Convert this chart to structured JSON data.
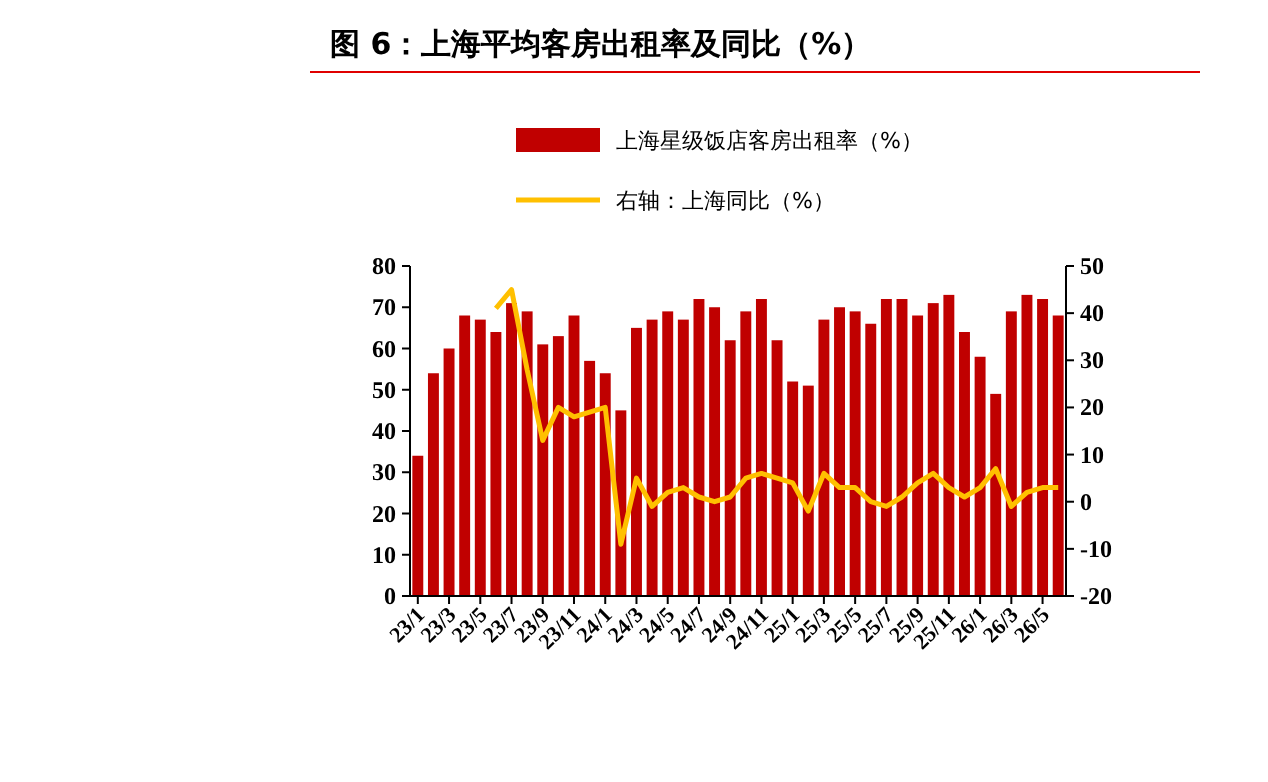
{
  "chart_data": {
    "type": "bar",
    "title": "图 6：上海平均客房出租率及同比（%）",
    "categories": [
      "23/1",
      null,
      "23/3",
      null,
      "23/5",
      null,
      "23/7",
      null,
      "23/9",
      null,
      "23/11",
      null,
      "24/1",
      null,
      "24/3",
      null,
      "24/5",
      null,
      "24/7",
      null,
      "24/9",
      null,
      "24/11",
      null,
      "25/1",
      null,
      "25/3",
      null,
      "25/5",
      null,
      "25/7",
      null,
      "25/9",
      null,
      "25/11",
      null,
      "26/1",
      null,
      "26/3",
      null,
      "26/5",
      null
    ],
    "series": [
      {
        "name": "上海星级饭店客房出租率（%）",
        "color": "#c00000",
        "values": [
          34,
          54,
          60,
          68,
          67,
          64,
          71,
          69,
          61,
          63,
          68,
          57,
          54,
          45,
          65,
          67,
          69,
          67,
          72,
          70,
          62,
          69,
          72,
          62,
          52,
          51,
          67,
          70,
          69,
          66,
          72,
          72,
          68,
          71,
          73,
          64,
          58,
          49,
          69,
          73,
          72,
          68
        ]
      },
      {
        "name": "右轴：上海同比（%）",
        "type": "line",
        "axis": "y2",
        "color": "#ffc000",
        "values": [
          null,
          null,
          null,
          null,
          null,
          41,
          45,
          28,
          13,
          20,
          18,
          19,
          20,
          -9,
          5,
          -1,
          2,
          3,
          1,
          0,
          1,
          5,
          6,
          5,
          4,
          -2,
          6,
          3,
          3,
          0,
          -1,
          1,
          4,
          6,
          3,
          1,
          3,
          7,
          -1,
          2,
          3,
          3
        ]
      }
    ],
    "ylim": [
      0,
      80
    ],
    "yticks": [
      0,
      10,
      20,
      30,
      40,
      50,
      60,
      70,
      80
    ],
    "y2lim": [
      -20,
      50
    ],
    "y2ticks": [
      -20,
      -10,
      0,
      10,
      20,
      30,
      40,
      50
    ],
    "legend": "top",
    "grid": false,
    "marker": "none",
    "line_style": "solid"
  }
}
